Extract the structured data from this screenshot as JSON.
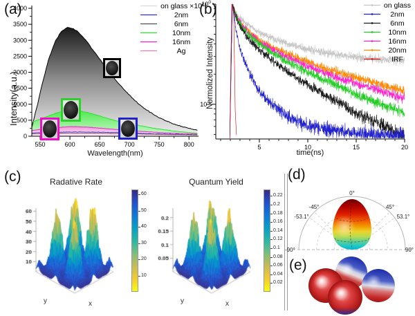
{
  "panels": {
    "a": {
      "label": "(a)"
    },
    "b": {
      "label": "(b)"
    },
    "c": {
      "label": "(c)"
    },
    "d": {
      "label": "(d)"
    },
    "e": {
      "label": "(e)"
    }
  },
  "chart_data": [
    {
      "id": "a",
      "type": "line",
      "xlabel": "Wavelength(nm)",
      "ylabel": "Intensity(a.u.)",
      "xlim": [
        536,
        816
      ],
      "ylim": [
        0,
        4000
      ],
      "xticks": [
        550,
        600,
        650,
        700,
        750,
        800
      ],
      "yticks": [
        0,
        500,
        1000,
        1500,
        2000,
        2500,
        3000,
        3500,
        4000
      ],
      "x": [
        535,
        545,
        555,
        565,
        575,
        585,
        595,
        605,
        615,
        625,
        635,
        645,
        655,
        665,
        675,
        685,
        695,
        705,
        715,
        725,
        735,
        745,
        755,
        765,
        775,
        785,
        795,
        805,
        815
      ],
      "series": [
        {
          "name": "on glass ×10",
          "color": "#000000",
          "legend_line_color": "#d9d9d9",
          "y": [
            200,
            950,
            1750,
            2450,
            2950,
            3270,
            3400,
            3370,
            3240,
            3040,
            2790,
            2540,
            2290,
            2040,
            1800,
            1580,
            1380,
            1190,
            1020,
            870,
            740,
            630,
            530,
            450,
            380,
            320,
            270,
            225,
            190
          ]
        },
        {
          "name": "2nm",
          "color": "#2a35c8",
          "y": [
            100,
            108,
            115,
            120,
            125,
            130,
            133,
            135,
            136,
            135,
            133,
            130,
            126,
            121,
            116,
            111,
            105,
            100,
            94,
            89,
            83,
            78,
            73,
            68,
            64,
            60,
            56,
            52,
            49
          ]
        },
        {
          "name": "6nm",
          "color": "#505050",
          "y": [
            80,
            84,
            88,
            92,
            95,
            98,
            100,
            101,
            101,
            100,
            98,
            96,
            93,
            90,
            87,
            84,
            80,
            77,
            73,
            70,
            66,
            63,
            60,
            57,
            54,
            51,
            49,
            47,
            45
          ]
        },
        {
          "name": "10nm",
          "color": "#2ddf2d",
          "y": [
            430,
            500,
            570,
            640,
            710,
            770,
            800,
            805,
            790,
            760,
            715,
            660,
            605,
            550,
            495,
            450,
            410,
            375,
            340,
            305,
            270,
            240,
            210,
            185,
            160,
            140,
            125,
            110,
            100
          ]
        },
        {
          "name": "16nm",
          "color": "#ee22cc",
          "y": [
            180,
            200,
            222,
            244,
            264,
            282,
            293,
            299,
            297,
            289,
            277,
            262,
            247,
            231,
            216,
            201,
            186,
            172,
            158,
            145,
            133,
            122,
            111,
            102,
            93,
            86,
            79,
            73,
            68
          ]
        },
        {
          "name": "Ag",
          "color": "#ef7ab8",
          "y": [
            70,
            75,
            80,
            85,
            89,
            92,
            95,
            96,
            96,
            95,
            93,
            90,
            87,
            84,
            80,
            77,
            73,
            70,
            66,
            63,
            59,
            56,
            53,
            50,
            47,
            44,
            42,
            40,
            38
          ]
        }
      ],
      "insets": [
        {
          "border_color": "#000000"
        },
        {
          "border_color": "#2ad32a"
        },
        {
          "border_color": "#f00cc8"
        },
        {
          "border_color": "#2020cc"
        }
      ]
    },
    {
      "id": "b",
      "type": "line-log",
      "xlabel": "time(ns)",
      "ylabel": "Normolized Intensity",
      "xlim": [
        0.5,
        20
      ],
      "ylim_log": [
        0.045,
        1
      ],
      "xticks": [
        5,
        10,
        15,
        20
      ],
      "ytick_labels": [
        "10^0",
        "10^-1"
      ],
      "series": [
        {
          "name": "on glass",
          "color": "#c6c6c6",
          "t": [
            1.95,
            2.2,
            2.6,
            3,
            4,
            5,
            6,
            8,
            10,
            12,
            15,
            20
          ],
          "v": [
            0.05,
            1.0,
            0.82,
            0.72,
            0.6,
            0.52,
            0.47,
            0.4,
            0.355,
            0.325,
            0.295,
            0.27
          ]
        },
        {
          "name": "2nm",
          "color": "#2222cc",
          "t": [
            1.95,
            2.2,
            2.6,
            3,
            4,
            5,
            6,
            8,
            10,
            12,
            15,
            20
          ],
          "v": [
            0.05,
            1.0,
            0.55,
            0.36,
            0.2,
            0.135,
            0.105,
            0.075,
            0.062,
            0.056,
            0.051,
            0.048
          ]
        },
        {
          "name": "6nm",
          "color": "#1a1a1a",
          "t": [
            1.95,
            2.2,
            2.6,
            3,
            4,
            5,
            6,
            8,
            10,
            12,
            15,
            20
          ],
          "v": [
            0.05,
            1.0,
            0.73,
            0.6,
            0.44,
            0.35,
            0.29,
            0.21,
            0.155,
            0.12,
            0.082,
            0.048
          ]
        },
        {
          "name": "10nm",
          "color": "#22cc22",
          "t": [
            1.95,
            2.2,
            2.6,
            3,
            4,
            5,
            6,
            8,
            10,
            12,
            15,
            20
          ],
          "v": [
            0.05,
            1.0,
            0.75,
            0.63,
            0.48,
            0.4,
            0.34,
            0.26,
            0.21,
            0.17,
            0.125,
            0.082
          ]
        },
        {
          "name": "16nm",
          "color": "#ff22cc",
          "t": [
            1.95,
            2.2,
            2.6,
            3,
            4,
            5,
            6,
            8,
            10,
            12,
            15,
            20
          ],
          "v": [
            0.05,
            1.0,
            0.76,
            0.645,
            0.5,
            0.42,
            0.365,
            0.29,
            0.24,
            0.2,
            0.16,
            0.115
          ]
        },
        {
          "name": "20nm",
          "color": "#ff8800",
          "t": [
            1.95,
            2.2,
            2.6,
            3,
            4,
            5,
            6,
            8,
            10,
            12,
            15,
            20
          ],
          "v": [
            0.05,
            1.0,
            0.77,
            0.655,
            0.515,
            0.435,
            0.385,
            0.315,
            0.265,
            0.225,
            0.185,
            0.135
          ]
        },
        {
          "name": "IRF",
          "color": "#dd1111",
          "t": [
            1.95,
            2.05,
            2.15,
            2.35,
            2.5,
            2.65
          ],
          "v": [
            0.046,
            0.25,
            1.0,
            0.85,
            0.09,
            0.046
          ]
        }
      ]
    },
    {
      "id": "c-left",
      "type": "surface",
      "title": "Radative Rate",
      "xlabel": "x",
      "ylabel": "y",
      "zticks": [
        10,
        20,
        30,
        40,
        50,
        60
      ],
      "colorbar_ticks": [
        10,
        20,
        30,
        40,
        50,
        60
      ],
      "scale_max": 63,
      "peak_height_approx": 60
    },
    {
      "id": "c-right",
      "type": "surface",
      "title": "Quantum Yield",
      "xlabel": "x",
      "ylabel": "y",
      "zticks": [
        0.05,
        0.1,
        0.15,
        0.2
      ],
      "colorbar_ticks": [
        0.02,
        0.04,
        0.06,
        0.08,
        0.1,
        0.12,
        0.14,
        0.16,
        0.18,
        0.2,
        0.22
      ],
      "scale_max": 0.235,
      "peak_height_approx": 0.22
    },
    {
      "id": "d",
      "type": "polar_radiation_pattern",
      "angle_ticks": [
        "0°",
        "-45°",
        "45°",
        "-53.1°",
        "53.1°",
        "-90°",
        "90°"
      ]
    },
    {
      "id": "e",
      "type": "charge_distribution_spheres",
      "spheres": [
        {
          "position": "back",
          "coloring": "blue-top-red-bottom"
        },
        {
          "position": "right",
          "coloring": "blue-top-red-bottom"
        },
        {
          "position": "front-left",
          "coloring": "red"
        },
        {
          "position": "front-center",
          "coloring": "red-with-blue-base"
        }
      ]
    }
  ]
}
